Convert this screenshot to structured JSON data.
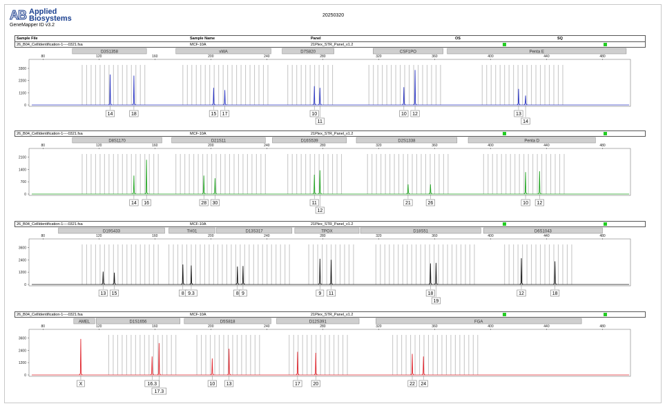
{
  "app": {
    "brand_line1": "Applied",
    "brand_line2": "Biosystems",
    "brand_mark": "AB",
    "version": "GeneMapper ID v3.2",
    "date": "20250320"
  },
  "colors": {
    "blue": "#2a35c2",
    "green": "#1fa31f",
    "black": "#111111",
    "red": "#e0262e",
    "bin": "#c8c8c8",
    "locus": "#cfcfcf"
  },
  "header": {
    "sample_file": "Sample File",
    "sample_name": "Sample Name",
    "panel": "Panel",
    "os": "OS",
    "sq": "SQ"
  },
  "x_ticks": [
    80,
    120,
    160,
    200,
    240,
    280,
    320,
    360,
    400,
    440,
    480
  ],
  "panels": [
    {
      "sample_file": "26_B04_CellIdentification-1----0321.fsa",
      "sample_name": "MCF-10A",
      "panel_name": "21Plex_STR_Panel_v1.2",
      "color": "blue",
      "y_ticks": [
        0,
        1100,
        2200,
        3300
      ],
      "y_max": 3800,
      "loci": [
        {
          "name": "D3S1358",
          "from": 101,
          "to": 154
        },
        {
          "name": "vWA",
          "from": 175,
          "to": 243
        },
        {
          "name": "D7S820",
          "from": 251,
          "to": 288
        },
        {
          "name": "CSF1PO",
          "from": 316,
          "to": 366
        },
        {
          "name": "Penta E",
          "from": 369,
          "to": 497
        }
      ],
      "bin_ranges": [
        [
          108,
          154
        ],
        [
          180,
          243
        ],
        [
          255,
          288
        ],
        [
          313,
          366
        ],
        [
          394,
          452
        ]
      ],
      "peaks": [
        {
          "size": 128,
          "height": 2750,
          "allele": "14",
          "row": 0
        },
        {
          "size": 145,
          "height": 2650,
          "allele": "18",
          "row": 0
        },
        {
          "size": 202,
          "height": 1550,
          "allele": "15",
          "row": 0
        },
        {
          "size": 210,
          "height": 1350,
          "allele": "17",
          "row": 0
        },
        {
          "size": 274,
          "height": 1700,
          "allele": "10",
          "row": 0
        },
        {
          "size": 278,
          "height": 1550,
          "allele": "11",
          "row": 1
        },
        {
          "size": 338,
          "height": 1600,
          "allele": "10",
          "row": 0
        },
        {
          "size": 346,
          "height": 3150,
          "allele": "12",
          "row": 0
        },
        {
          "size": 420,
          "height": 1450,
          "allele": "13",
          "row": 0
        },
        {
          "size": 425,
          "height": 850,
          "allele": "14",
          "row": 1
        }
      ]
    },
    {
      "sample_file": "26_B04_CellIdentification-1----0321.fsa",
      "sample_name": "MCF-10A",
      "panel_name": "21Plex_STR_Panel_v1.2",
      "color": "green",
      "y_ticks": [
        0,
        700,
        1400,
        2100
      ],
      "y_max": 2400,
      "loci": [
        {
          "name": "D8S1170",
          "from": 101,
          "to": 165
        },
        {
          "name": "D21S11",
          "from": 172,
          "to": 239
        },
        {
          "name": "D16S539",
          "from": 244,
          "to": 297
        },
        {
          "name": "D2S1338",
          "from": 304,
          "to": 376
        },
        {
          "name": "Penta D",
          "from": 384,
          "to": 475
        }
      ],
      "bin_ranges": [
        [
          108,
          165
        ],
        [
          175,
          240
        ],
        [
          255,
          295
        ],
        [
          312,
          370
        ],
        [
          395,
          455
        ]
      ],
      "peaks": [
        {
          "size": 145,
          "height": 1050,
          "allele": "14",
          "row": 0
        },
        {
          "size": 154,
          "height": 1950,
          "allele": "16",
          "row": 0
        },
        {
          "size": 195,
          "height": 1050,
          "allele": "28",
          "row": 0
        },
        {
          "size": 203,
          "height": 900,
          "allele": "30",
          "row": 0
        },
        {
          "size": 274,
          "height": 1100,
          "allele": "11",
          "row": 0
        },
        {
          "size": 278,
          "height": 1350,
          "allele": "12",
          "row": 1
        },
        {
          "size": 341,
          "height": 550,
          "allele": "21",
          "row": 0
        },
        {
          "size": 357,
          "height": 550,
          "allele": "26",
          "row": 0
        },
        {
          "size": 425,
          "height": 1250,
          "allele": "10",
          "row": 0
        },
        {
          "size": 435,
          "height": 1300,
          "allele": "12",
          "row": 0
        }
      ]
    },
    {
      "sample_file": "26_B04_CellIdentification-1----0321.fsa",
      "sample_name": "MCF-10A",
      "panel_name": "21Plex_STR_Panel_v1.2",
      "color": "black",
      "y_ticks": [
        0,
        1200,
        2400,
        3600
      ],
      "y_max": 4100,
      "loci": [
        {
          "name": "D19S433",
          "from": 91,
          "to": 167
        },
        {
          "name": "TH01",
          "from": 170,
          "to": 203
        },
        {
          "name": "D13S317",
          "from": 204,
          "to": 258
        },
        {
          "name": "TPOX",
          "from": 260,
          "to": 306
        },
        {
          "name": "D18S51",
          "from": 307,
          "to": 393
        },
        {
          "name": "D6S1043",
          "from": 395,
          "to": 480
        }
      ],
      "bin_ranges": [
        [
          108,
          163
        ],
        [
          170,
          203
        ],
        [
          205,
          258
        ],
        [
          270,
          302
        ],
        [
          318,
          390
        ],
        [
          410,
          460
        ]
      ],
      "peaks": [
        {
          "size": 123,
          "height": 1250,
          "allele": "13",
          "row": 0
        },
        {
          "size": 131,
          "height": 1150,
          "allele": "15",
          "row": 0
        },
        {
          "size": 180,
          "height": 1950,
          "allele": "8",
          "row": 0
        },
        {
          "size": 186,
          "height": 1850,
          "allele": "9.3",
          "row": 0
        },
        {
          "size": 219,
          "height": 1750,
          "allele": "8",
          "row": 0
        },
        {
          "size": 223,
          "height": 1800,
          "allele": "9",
          "row": 0
        },
        {
          "size": 278,
          "height": 2500,
          "allele": "9",
          "row": 0
        },
        {
          "size": 286,
          "height": 2400,
          "allele": "11",
          "row": 0
        },
        {
          "size": 357,
          "height": 2050,
          "allele": "18",
          "row": 0
        },
        {
          "size": 361,
          "height": 2100,
          "allele": "19",
          "row": 1
        },
        {
          "size": 422,
          "height": 2550,
          "allele": "12",
          "row": 0
        },
        {
          "size": 446,
          "height": 2250,
          "allele": "18",
          "row": 0
        }
      ]
    },
    {
      "sample_file": "26_B04_CellIdentification-1----0321.fsa",
      "sample_name": "MCF-10A",
      "panel_name": "21Plex_STR_Panel_v1.2",
      "color": "red",
      "y_ticks": [
        0,
        1200,
        2400,
        3600
      ],
      "y_max": 4100,
      "loci": [
        {
          "name": "AMEL",
          "from": 102,
          "to": 117
        },
        {
          "name": "D1S1656",
          "from": 118,
          "to": 178
        },
        {
          "name": "D5S818",
          "from": 181,
          "to": 243
        },
        {
          "name": "D12S391",
          "from": 247,
          "to": 306
        },
        {
          "name": "FGA",
          "from": 318,
          "to": 465
        }
      ],
      "bin_ranges": [
        [
          127,
          177
        ],
        [
          190,
          235
        ],
        [
          256,
          298
        ],
        [
          330,
          392
        ]
      ],
      "peaks": [
        {
          "size": 107,
          "height": 3500,
          "allele": "X",
          "row": 0
        },
        {
          "size": 158,
          "height": 1800,
          "allele": "16.3",
          "row": 0
        },
        {
          "size": 163,
          "height": 3100,
          "allele": "17.3",
          "row": 1
        },
        {
          "size": 201,
          "height": 1600,
          "allele": "10",
          "row": 0
        },
        {
          "size": 213,
          "height": 2550,
          "allele": "13",
          "row": 0
        },
        {
          "size": 262,
          "height": 2250,
          "allele": "17",
          "row": 0
        },
        {
          "size": 275,
          "height": 2150,
          "allele": "20",
          "row": 0
        },
        {
          "size": 344,
          "height": 2050,
          "allele": "22",
          "row": 0
        },
        {
          "size": 352,
          "height": 1800,
          "allele": "24",
          "row": 0
        }
      ]
    }
  ]
}
